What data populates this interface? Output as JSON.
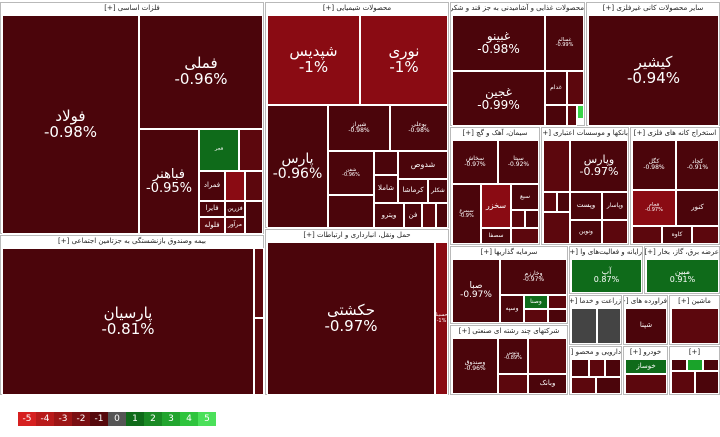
{
  "sections": {
    "basic_metals": "فلزات اساسی [+]",
    "chemical": "محصولات شیمیایی [+]",
    "food": "محصولات غذایی و آشامیدنی به جز قند و شکر [+]",
    "agri": "سایر محصولات کانی غیرفلزی [+]",
    "cement": "سیمان، آهک و گچ [+]",
    "banks": "بانکها و موسسات اعتباری [+]",
    "coal": "استخراج کانه های فلزی [+]",
    "insurance": "بیمه وصندوق بازنشستگی به جزتامین اجتماعی [+]",
    "transport": "حمل ونقل، انبارداری و ارتباطات [+]",
    "investment": "سرمایه گذاریها [+]",
    "utilities": "عرضه برق، گاز، بخار [+]",
    "multi": "شرکتهای چند رشته ای صنعتی [+]",
    "realestate": "رایانه و فعالیت‌های وا [+]",
    "services": "زراعت و خدما [+]",
    "products": "فراورده های [+]",
    "machinery": "ماشین [+]",
    "auto": "خودرو [+]",
    "pharma": "دارویی و محصو [+]",
    "misc1": "[+]",
    "misc2": "[+]",
    "misc3": "[+]"
  },
  "tiles": {
    "foolad": {
      "name": "فولاد",
      "pct": "-0.98%"
    },
    "fameli": {
      "name": "فملی",
      "pct": "-0.96%"
    },
    "fabahonar": {
      "name": "فباهنر",
      "pct": "-0.95%"
    },
    "fajr": {
      "name": "فجر"
    },
    "famrad": {
      "name": "فمراد"
    },
    "falzar": {
      "name": "فایرا"
    },
    "folave": {
      "name": "فلوله"
    },
    "marover": {
      "name": "فزرین"
    },
    "morvar": {
      "name": "مرآور"
    },
    "shabandar": {
      "name": "شپدیس",
      "pct": "-1%"
    },
    "noori": {
      "name": "نوری",
      "pct": "-1%"
    },
    "pars": {
      "name": "پارس",
      "pct": "-0.96%"
    },
    "shiraz": {
      "name": "شیراز",
      "pct": "-0.98%"
    },
    "bojli": {
      "name": "بوعلی",
      "pct": "-0.98%"
    },
    "shafan": {
      "name": "شفن",
      "pct": "-0.96%"
    },
    "shdos": {
      "name": "شدوص"
    },
    "shamla": {
      "name": "شاملا"
    },
    "kerma": {
      "name": "کرماشا"
    },
    "shakar": {
      "name": "شکلر"
    },
    "veterio": {
      "name": "ویترو"
    },
    "fon": {
      "name": "فن"
    },
    "ghabino": {
      "name": "غبینو",
      "pct": "-0.98%"
    },
    "ghojin": {
      "name": "غجین",
      "pct": "-0.99%"
    },
    "ghesal": {
      "name": "غسالم",
      "pct": "-0.99%"
    },
    "ghadal": {
      "name": "غدام"
    },
    "kashir": {
      "name": "کیشیر",
      "pct": "-0.94%"
    },
    "sakhash": {
      "name": "سخاش",
      "pct": "-0.97%"
    },
    "sina": {
      "name": "سیتا",
      "pct": "-0.92%"
    },
    "sakhzar": {
      "name": "سخزر"
    },
    "sahq": {
      "name": "سیمرغ",
      "pct": "-0.9%"
    },
    "sasfa": {
      "name": "سصفا"
    },
    "seb": {
      "name": "سبع"
    },
    "vapars": {
      "name": "وپارس",
      "pct": "-0.97%"
    },
    "vapasat": {
      "name": "وپست"
    },
    "vabemellat": {
      "name": "وپاسار"
    },
    "vanovin": {
      "name": "ونوین"
    },
    "kagol": {
      "name": "کگل",
      "pct": "-0.98%"
    },
    "kachad": {
      "name": "کچاد",
      "pct": "-0.91%"
    },
    "kabeshir": {
      "name": "فجام",
      "pct": "-0.97%"
    },
    "kanor": {
      "name": "کنور"
    },
    "lavah": {
      "name": "کاوه"
    },
    "parsian": {
      "name": "پارسیان",
      "pct": "-0.81%"
    },
    "hakeshti": {
      "name": "حکشتی",
      "pct": "-0.97%"
    },
    "hosevah": {
      "name": "حسینا",
      "pct": "-1%"
    },
    "saba": {
      "name": "صبا",
      "pct": "-0.97%"
    },
    "vakharazm": {
      "name": "وخارزم",
      "pct": "-0.97%"
    },
    "vasaha": {
      "name": "وسپه"
    },
    "vasna": {
      "name": "وصنا"
    },
    "ap": {
      "name": "آپ",
      "pct": "0.87%"
    },
    "mabin": {
      "name": "مبین",
      "pct": "0.91%"
    },
    "vasandoq": {
      "name": "وصندوق",
      "pct": "-0.96%"
    },
    "vatoos": {
      "name": "وتوس",
      "pct": "-0.89%"
    },
    "vabank": {
      "name": "وبانک"
    },
    "vsina": {
      "name": "وسینا"
    },
    "shina": {
      "name": "شپنا"
    },
    "khosaz": {
      "name": "خوساز"
    }
  },
  "legend": [
    "-5",
    "-4",
    "-3",
    "-2",
    "-1",
    "0",
    "1",
    "2",
    "3",
    "4",
    "5"
  ],
  "legend_colors": [
    "#d62020",
    "#b81a1a",
    "#9c1515",
    "#7a0f12",
    "#55090c",
    "#555555",
    "#0f6b1a",
    "#1a8a25",
    "#22a52f",
    "#2fc43d",
    "#4be05a"
  ]
}
